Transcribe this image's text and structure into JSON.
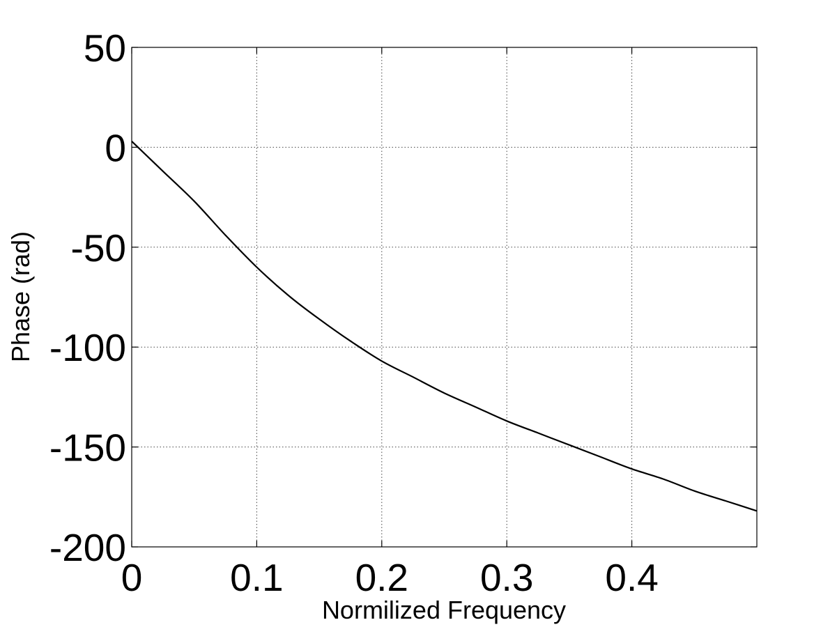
{
  "chart_data": {
    "type": "line",
    "title": "",
    "xlabel": "Normilized Frequency",
    "ylabel": "Phase (rad)",
    "xlim": [
      0,
      0.5
    ],
    "ylim": [
      -200,
      50
    ],
    "x_ticks": [
      0,
      0.1,
      0.2,
      0.3,
      0.4
    ],
    "x_tick_labels": [
      "0",
      "0.1",
      "0.2",
      "0.3",
      "0.4"
    ],
    "y_ticks": [
      -200,
      -150,
      -100,
      -50,
      0,
      50
    ],
    "y_tick_labels": [
      "-200",
      "-150",
      "-100",
      "-50",
      "0",
      "50"
    ],
    "grid": true,
    "grid_style": "dotted",
    "legend": "none",
    "series": [
      {
        "color": "#000000",
        "x": [
          0,
          0.025,
          0.05,
          0.075,
          0.1,
          0.125,
          0.15,
          0.175,
          0.2,
          0.225,
          0.25,
          0.275,
          0.3,
          0.325,
          0.35,
          0.375,
          0.4,
          0.425,
          0.45,
          0.475,
          0.5
        ],
        "y": [
          3,
          -12,
          -27,
          -44,
          -60,
          -74,
          -86,
          -97,
          -107,
          -115,
          -123,
          -130,
          -137,
          -143,
          -149,
          -155,
          -161,
          -166,
          -172,
          -177,
          -182
        ]
      }
    ]
  }
}
